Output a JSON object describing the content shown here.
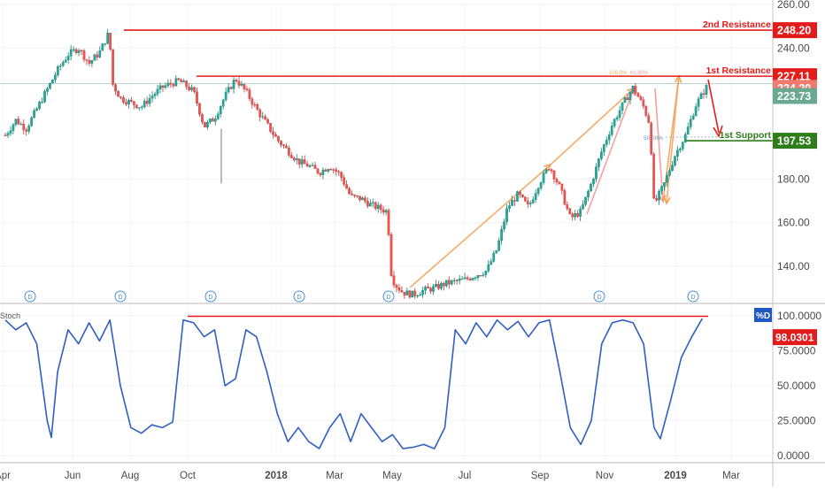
{
  "chart_data": [
    {
      "type": "candlestick",
      "ylim": [
        125,
        260
      ],
      "y_ticks": [
        "260.00",
        "240.00",
        "180.00",
        "160.00",
        "140.00"
      ],
      "x_ticks": [
        "Apr",
        "Jun",
        "Aug",
        "Oct",
        "2018",
        "Mar",
        "May",
        "Jul",
        "Sep",
        "Nov",
        "2019",
        "Mar"
      ],
      "price_path": [
        [
          0,
          200
        ],
        [
          0.5,
          207
        ],
        [
          1,
          203
        ],
        [
          1.5,
          212
        ],
        [
          2,
          221
        ],
        [
          2.5,
          230
        ],
        [
          3,
          237
        ],
        [
          3.5,
          240
        ],
        [
          4,
          233
        ],
        [
          4.5,
          238
        ],
        [
          5,
          248
        ],
        [
          5.05,
          225
        ],
        [
          5.5,
          217
        ],
        [
          6,
          215
        ],
        [
          6.5,
          213
        ],
        [
          7,
          218
        ],
        [
          7.5,
          222
        ],
        [
          8,
          224
        ],
        [
          8.3,
          225
        ],
        [
          8.6,
          223
        ],
        [
          9,
          220
        ],
        [
          9.5,
          204
        ],
        [
          10,
          208
        ],
        [
          10.5,
          218
        ],
        [
          11,
          226
        ],
        [
          11.5,
          220
        ],
        [
          12,
          212
        ],
        [
          12.5,
          205
        ],
        [
          13,
          198
        ],
        [
          13.5,
          193
        ],
        [
          14,
          188
        ],
        [
          14.5,
          186
        ],
        [
          15,
          183
        ],
        [
          15.5,
          186
        ],
        [
          16,
          182
        ],
        [
          16.5,
          172
        ],
        [
          17,
          171
        ],
        [
          17.5,
          168
        ],
        [
          18,
          166
        ],
        [
          18.3,
          165
        ],
        [
          18.35,
          140
        ],
        [
          18.6,
          132
        ],
        [
          19,
          128
        ],
        [
          19.5,
          127
        ],
        [
          20,
          129
        ],
        [
          20.5,
          130
        ],
        [
          21,
          132
        ],
        [
          21.5,
          133
        ],
        [
          22,
          134
        ],
        [
          22.5,
          136
        ],
        [
          23,
          138
        ],
        [
          23.5,
          148
        ],
        [
          24,
          167
        ],
        [
          24.5,
          173
        ],
        [
          25,
          167
        ],
        [
          25.5,
          178
        ],
        [
          26,
          186
        ],
        [
          26.5,
          176
        ],
        [
          27,
          162
        ],
        [
          27.5,
          165
        ],
        [
          28,
          178
        ],
        [
          28.5,
          193
        ],
        [
          29,
          205
        ],
        [
          29.5,
          214
        ],
        [
          30,
          222
        ],
        [
          30.5,
          213
        ],
        [
          30.8,
          205
        ],
        [
          31,
          168
        ],
        [
          31.5,
          178
        ],
        [
          32,
          191
        ],
        [
          32.5,
          200
        ],
        [
          33,
          214
        ],
        [
          33.5,
          222
        ]
      ],
      "annotations": {
        "resistance_2": {
          "label": "2nd Resistance",
          "value": 248.2,
          "color": "#e31b1b"
        },
        "resistance_1": {
          "label": "1st Resistance",
          "value": 227.11,
          "color": "#e31b1b"
        },
        "support_1": {
          "label": "1st Support",
          "value": 197.53,
          "color": "#2e7d1a"
        },
        "fib_labels": [
          "100.0%",
          "61.80%",
          "50.00%"
        ],
        "price_tags": [
          {
            "value": 224.2,
            "text": "224.20",
            "color": "#ef7c6f"
          },
          {
            "value": 223.73,
            "text": "223.73",
            "color": "#6aa88f"
          }
        ],
        "dividend_marker": "D"
      }
    },
    {
      "type": "line",
      "name": "Stoch",
      "legend": "%D",
      "ylim": [
        0,
        100
      ],
      "y_ticks": [
        "100.0000",
        "75.0000",
        "50.0000",
        "25.0000",
        "0.0000"
      ],
      "last_value": "98.0301",
      "overbought_line": 100,
      "legend_color": "#1f57c3",
      "line_color": "#2f5fbf",
      "stoch_path": [
        [
          0,
          97
        ],
        [
          0.5,
          90
        ],
        [
          1,
          95
        ],
        [
          1.5,
          80
        ],
        [
          2,
          25
        ],
        [
          2.2,
          13
        ],
        [
          2.5,
          60
        ],
        [
          3,
          90
        ],
        [
          3.5,
          80
        ],
        [
          4,
          95
        ],
        [
          4.5,
          82
        ],
        [
          5,
          97
        ],
        [
          5.5,
          50
        ],
        [
          6,
          20
        ],
        [
          6.5,
          16
        ],
        [
          7,
          22
        ],
        [
          7.5,
          20
        ],
        [
          8,
          24
        ],
        [
          8.5,
          97
        ],
        [
          9,
          95
        ],
        [
          9.5,
          85
        ],
        [
          10,
          90
        ],
        [
          10.5,
          50
        ],
        [
          11,
          55
        ],
        [
          11.5,
          90
        ],
        [
          12,
          85
        ],
        [
          12.5,
          60
        ],
        [
          13,
          30
        ],
        [
          13.5,
          10
        ],
        [
          14,
          20
        ],
        [
          14.5,
          10
        ],
        [
          15,
          5
        ],
        [
          15.5,
          20
        ],
        [
          16,
          30
        ],
        [
          16.5,
          10
        ],
        [
          17,
          30
        ],
        [
          17.5,
          20
        ],
        [
          18,
          10
        ],
        [
          18.5,
          15
        ],
        [
          19,
          5
        ],
        [
          19.5,
          6
        ],
        [
          20,
          8
        ],
        [
          20.5,
          5
        ],
        [
          21,
          20
        ],
        [
          21.5,
          90
        ],
        [
          22,
          80
        ],
        [
          22.5,
          95
        ],
        [
          23,
          85
        ],
        [
          23.5,
          97
        ],
        [
          24,
          90
        ],
        [
          24.5,
          96
        ],
        [
          25,
          85
        ],
        [
          25.5,
          95
        ],
        [
          26,
          97
        ],
        [
          26.5,
          60
        ],
        [
          27,
          20
        ],
        [
          27.5,
          8
        ],
        [
          28,
          25
        ],
        [
          28.5,
          80
        ],
        [
          29,
          95
        ],
        [
          29.5,
          97
        ],
        [
          30,
          95
        ],
        [
          30.5,
          80
        ],
        [
          31,
          20
        ],
        [
          31.3,
          12
        ],
        [
          31.8,
          40
        ],
        [
          32.3,
          70
        ],
        [
          32.8,
          85
        ],
        [
          33.3,
          98
        ]
      ]
    }
  ]
}
